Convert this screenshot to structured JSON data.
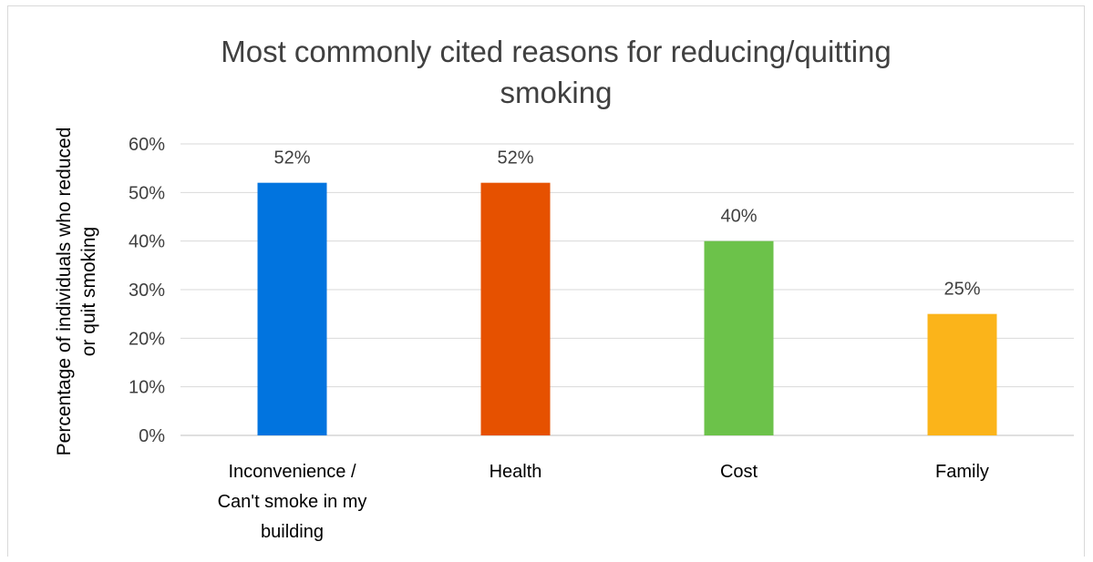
{
  "chart_data": {
    "type": "bar",
    "title_lines": [
      "Most commonly cited reasons for reducing/quitting",
      "smoking"
    ],
    "ylabel_lines": [
      "Percentage of individuals who reduced",
      "or quit smoking"
    ],
    "xlabel": "",
    "categories": [
      [
        "Inconvenience /",
        "Can't smoke in my",
        "building"
      ],
      [
        "Health"
      ],
      [
        "Cost"
      ],
      [
        "Family"
      ]
    ],
    "values": [
      52,
      52,
      40,
      25
    ],
    "data_labels": [
      "52%",
      "52%",
      "40%",
      "25%"
    ],
    "colors": [
      "#0174df",
      "#e65100",
      "#6cc24a",
      "#fbb41a"
    ],
    "ylim": [
      0,
      60
    ],
    "yticks": [
      0,
      10,
      20,
      30,
      40,
      50,
      60
    ],
    "ytick_labels": [
      "0%",
      "10%",
      "20%",
      "30%",
      "40%",
      "50%",
      "60%"
    ],
    "grid": true,
    "legend": "none"
  }
}
